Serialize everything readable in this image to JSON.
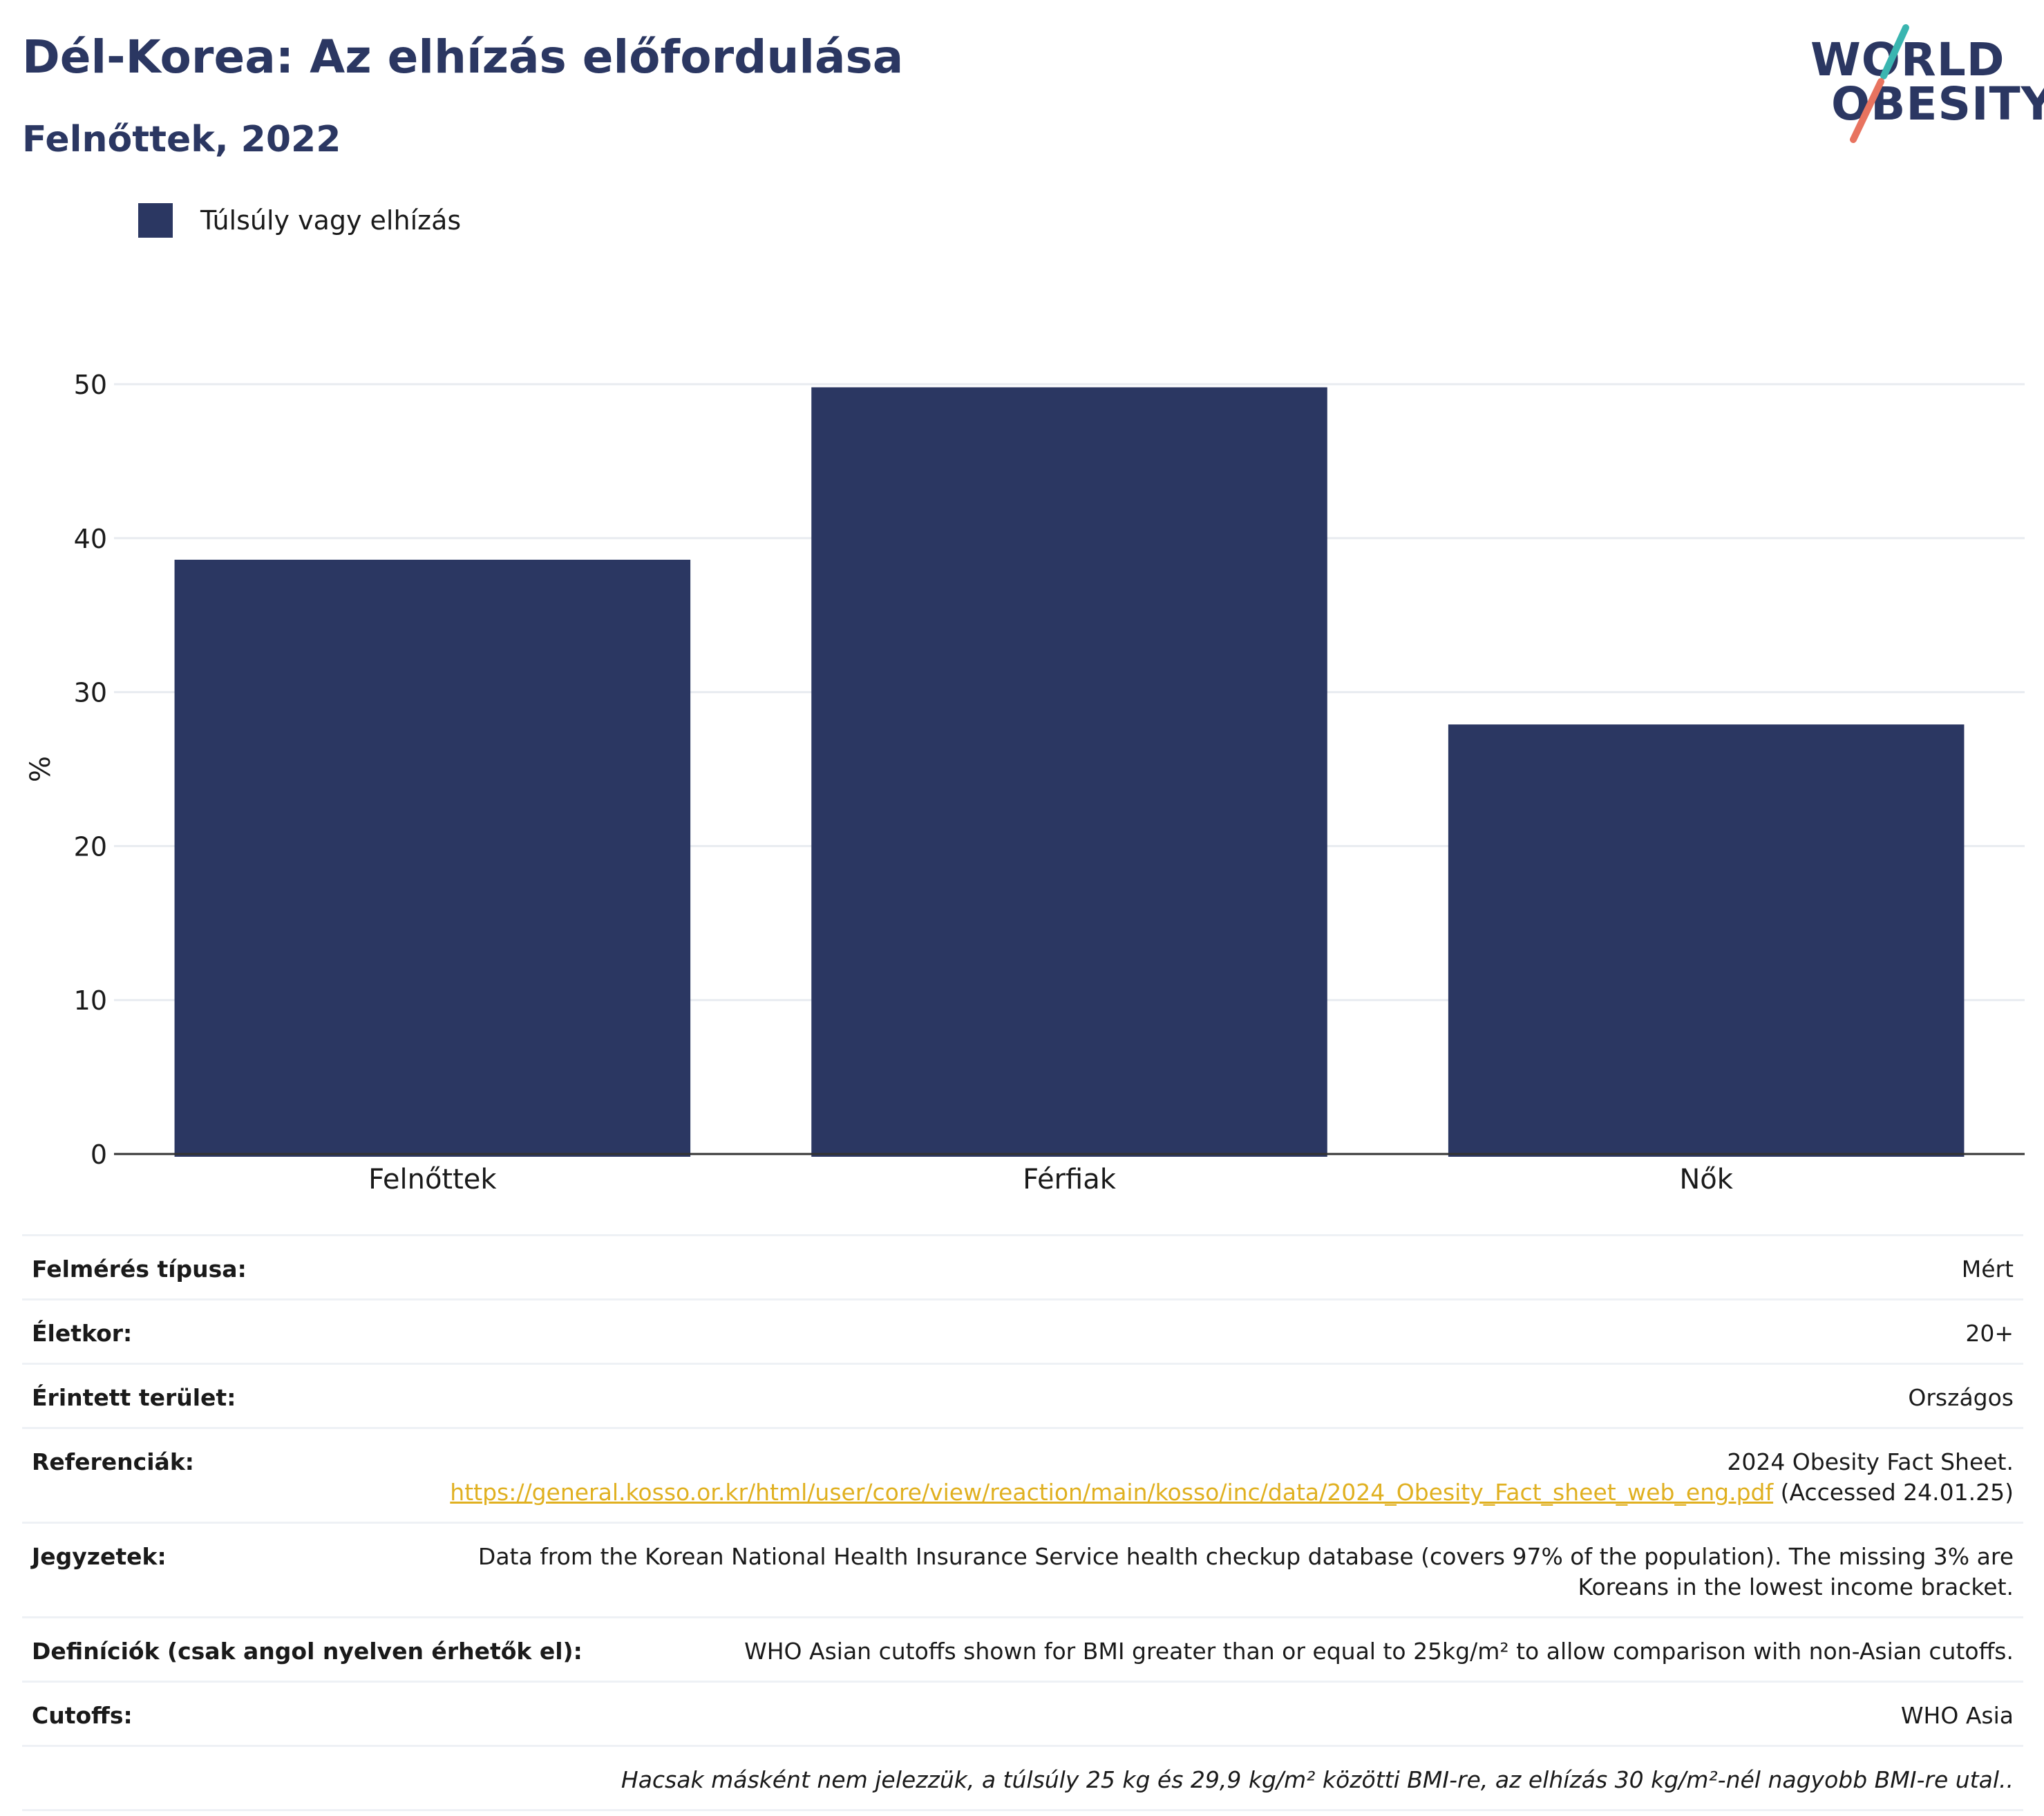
{
  "title": "Dél-Korea: Az elhízás előfordulása",
  "subtitle": "Felnőttek, 2022",
  "logo": {
    "line1": "WORLD",
    "line2": "OBESITY",
    "colors": {
      "teal": "#3ab5b0",
      "coral": "#e8735f"
    }
  },
  "chart_data": {
    "type": "bar",
    "categories": [
      "Felnőttek",
      "Férfiak",
      "Nők"
    ],
    "series": [
      {
        "name": "Túlsúly vagy elhízás",
        "values": [
          38.6,
          49.8,
          27.9
        ],
        "color": "#2b3762"
      }
    ],
    "ylabel": "%",
    "ylim": [
      0,
      50
    ],
    "yticks": [
      0,
      10,
      20,
      30,
      40,
      50
    ],
    "grid": true,
    "legend": "top-left"
  },
  "info": [
    {
      "label": "Felmérés típusa:",
      "value": "Mért"
    },
    {
      "label": "Életkor:",
      "value": "20+"
    },
    {
      "label": "Érintett terület:",
      "value": "Országos"
    },
    {
      "label": "Referenciák:",
      "value": "2024 Obesity Fact Sheet.",
      "link": "https://general.kosso.or.kr/html/user/core/view/reaction/main/kosso/inc/data/2024_Obesity_Fact_sheet_web_eng.pdf",
      "after": " (Accessed 24.01.25)"
    },
    {
      "label": "Jegyzetek:",
      "value": "Data from the Korean National Health Insurance Service health checkup database (covers 97% of the population). The missing 3% are Koreans in the lowest income bracket."
    },
    {
      "label": "Definíciók (csak angol nyelven érhetők el):",
      "value": "WHO Asian cutoffs shown for BMI greater than or equal to 25kg/m² to allow comparison with non-Asian cutoffs."
    },
    {
      "label": "Cutoffs:",
      "value": "WHO Asia"
    },
    {
      "label": "",
      "value": "Hacsak másként nem jelezzük, a túlsúly 25 kg és 29,9 kg/m² közötti BMI-re, az elhízás 30 kg/m²-nél nagyobb BMI-re utal.."
    }
  ]
}
